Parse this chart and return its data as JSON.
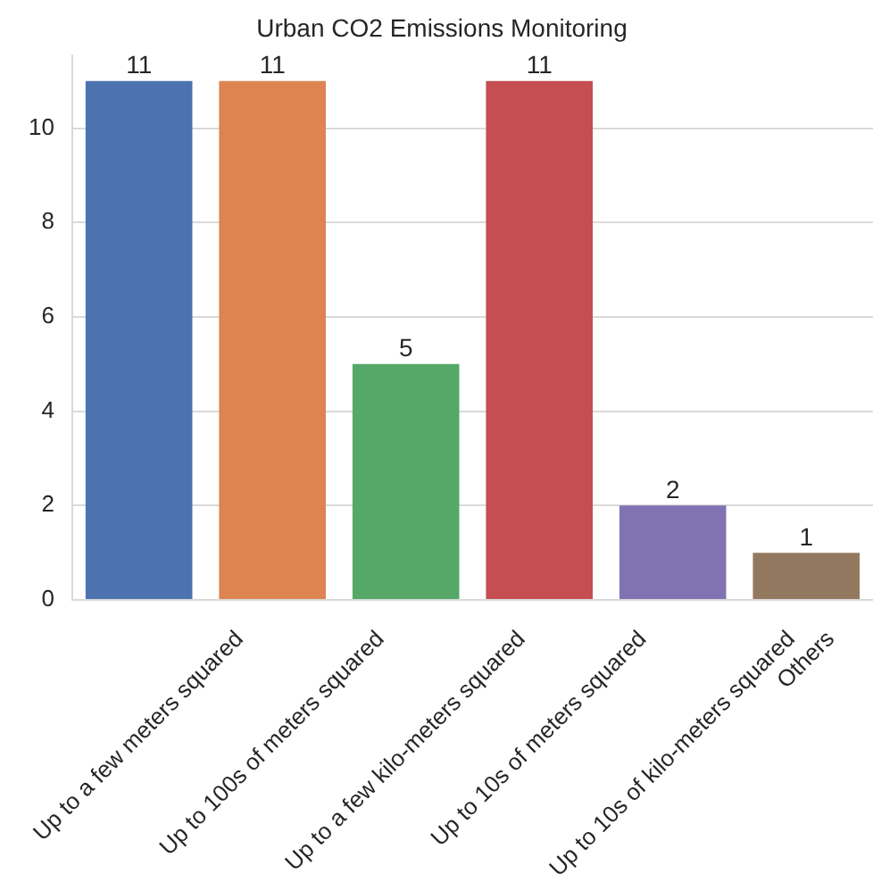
{
  "chart_data": {
    "type": "bar",
    "title": "Urban CO2 Emissions Monitoring",
    "categories": [
      "Up to a few meters squared",
      "Up to 100s of meters squared",
      "Up to a few kilo-meters squared",
      "Up to 10s of meters squared",
      "Up to 10s of kilo-meters squared",
      "Others"
    ],
    "values": [
      11,
      11,
      5,
      11,
      2,
      1
    ],
    "colors": [
      "#4c72b0",
      "#dd8452",
      "#55a868",
      "#c44e52",
      "#8172b3",
      "#937860"
    ],
    "ylim": [
      0,
      11.55
    ],
    "yticks": [
      0,
      2,
      4,
      6,
      8,
      10
    ],
    "grid": "y",
    "data_labels": true
  }
}
